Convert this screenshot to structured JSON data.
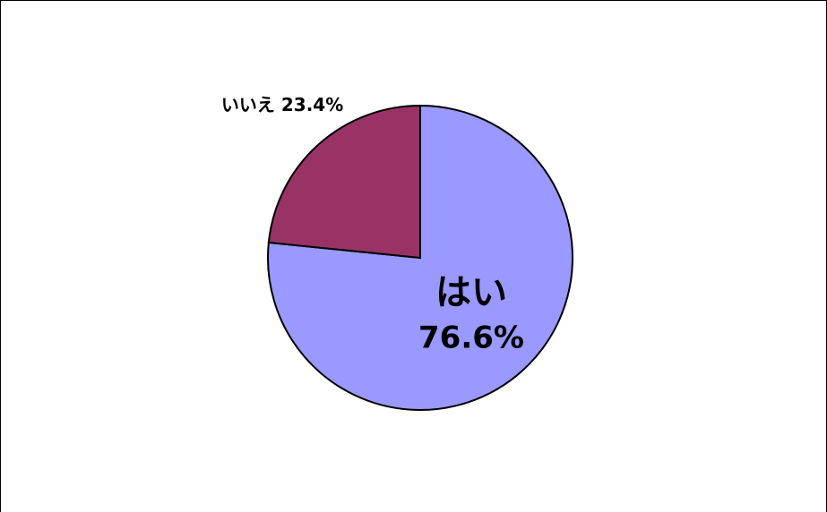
{
  "chart_data": {
    "type": "pie",
    "categories": [
      "はい",
      "いいえ"
    ],
    "values": [
      76.6,
      23.4
    ],
    "value_labels": [
      "76.6%",
      "23.4%"
    ],
    "colors": [
      "#9999ff",
      "#993366"
    ],
    "start_angle": 0,
    "direction": "clockwise"
  }
}
